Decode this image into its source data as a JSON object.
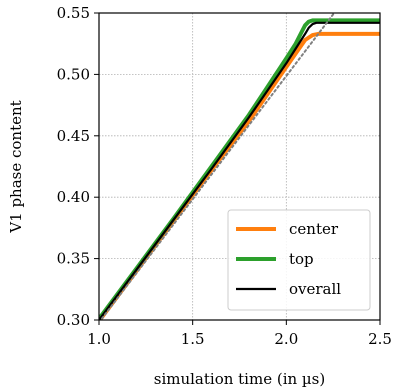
{
  "chart_data": {
    "type": "line",
    "xlabel": "simulation time (in µs)",
    "ylabel": "V1 phase content",
    "xlim": [
      1.0,
      2.5
    ],
    "ylim": [
      0.3,
      0.55
    ],
    "xticks": [
      1.0,
      1.5,
      2.0,
      2.5
    ],
    "xtick_labels": [
      "1.0",
      "1.5",
      "2.0",
      "2.5"
    ],
    "yticks": [
      0.3,
      0.35,
      0.4,
      0.45,
      0.5,
      0.55
    ],
    "ytick_labels": [
      "0.30",
      "0.35",
      "0.40",
      "0.45",
      "0.50",
      "0.55"
    ],
    "grid": true,
    "legend_position": "lower right",
    "series": [
      {
        "name": "center",
        "color": "#ff7f0e",
        "x": [
          1.0,
          1.2,
          1.4,
          1.6,
          1.8,
          1.9,
          2.0,
          2.05,
          2.1,
          2.14,
          2.17,
          2.2,
          2.5
        ],
        "y": [
          0.299,
          0.34,
          0.381,
          0.422,
          0.462,
          0.484,
          0.506,
          0.517,
          0.528,
          0.532,
          0.533,
          0.533,
          0.533
        ]
      },
      {
        "name": "top",
        "color": "#2ca02c",
        "x": [
          1.0,
          1.2,
          1.4,
          1.6,
          1.8,
          1.9,
          2.0,
          2.05,
          2.08,
          2.1,
          2.12,
          2.14,
          2.5
        ],
        "y": [
          0.301,
          0.342,
          0.383,
          0.425,
          0.467,
          0.49,
          0.513,
          0.525,
          0.534,
          0.54,
          0.543,
          0.544,
          0.544
        ]
      },
      {
        "name": "overall",
        "color": "#000000",
        "x": [
          1.0,
          1.2,
          1.4,
          1.6,
          1.8,
          1.9,
          2.0,
          2.05,
          2.1,
          2.12,
          2.14,
          2.16,
          2.5
        ],
        "y": [
          0.3,
          0.341,
          0.382,
          0.423,
          0.465,
          0.487,
          0.509,
          0.521,
          0.533,
          0.538,
          0.541,
          0.542,
          0.542
        ]
      }
    ],
    "reference_line": {
      "style": "dotted",
      "color": "#808080",
      "x": [
        1.0,
        2.28
      ],
      "y": [
        0.298,
        0.555
      ]
    }
  }
}
